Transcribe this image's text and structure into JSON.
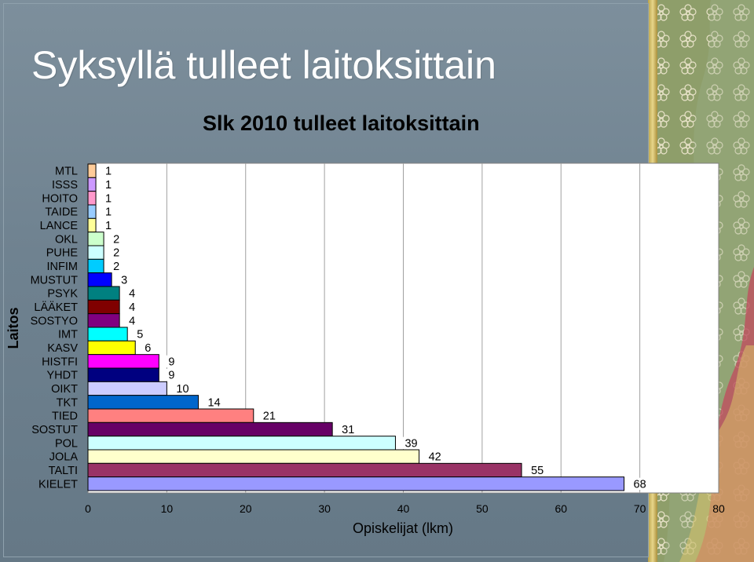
{
  "slide": {
    "title": "Syksyllä tulleet laitoksittain"
  },
  "chart_data": {
    "type": "bar",
    "orientation": "horizontal",
    "title": "Slk 2010 tulleet laitoksittain",
    "xlabel": "Opiskelijat (lkm)",
    "ylabel": "Laitos",
    "xlim": [
      0,
      80
    ],
    "xticks": [
      0,
      10,
      20,
      30,
      40,
      50,
      60,
      70,
      80
    ],
    "grid": "vertical",
    "legend": "none",
    "categories": [
      "MTL",
      "ISSS",
      "HOITO",
      "TAIDE",
      "LANCE",
      "OKL",
      "PUHE",
      "INFIM",
      "MUSTUT",
      "PSYK",
      "LÄÄKET",
      "SOSTYO",
      "IMT",
      "KASV",
      "HISTFI",
      "YHDT",
      "OIKT",
      "TKT",
      "TIED",
      "SOSTUT",
      "POL",
      "JOLA",
      "TALTI",
      "KIELET"
    ],
    "values": [
      1,
      1,
      1,
      1,
      1,
      2,
      2,
      2,
      3,
      4,
      4,
      4,
      5,
      6,
      9,
      9,
      10,
      14,
      21,
      31,
      39,
      42,
      55,
      68
    ],
    "colors": [
      "#ffcc99",
      "#cc99ff",
      "#ff99cc",
      "#99ccff",
      "#ffff99",
      "#ccffcc",
      "#ccffff",
      "#00ccff",
      "#0000ff",
      "#008080",
      "#800000",
      "#800080",
      "#00ffff",
      "#ffff00",
      "#ff00ff",
      "#000080",
      "#ccccff",
      "#0066cc",
      "#ff8080",
      "#660066",
      "#ccffff",
      "#ffffcc",
      "#993366",
      "#9999ff"
    ]
  }
}
